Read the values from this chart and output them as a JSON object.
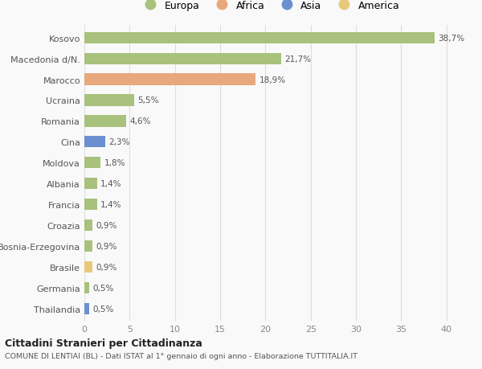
{
  "categories": [
    "Kosovo",
    "Macedonia d/N.",
    "Marocco",
    "Ucraina",
    "Romania",
    "Cina",
    "Moldova",
    "Albania",
    "Francia",
    "Croazia",
    "Bosnia-Erzegovina",
    "Brasile",
    "Germania",
    "Thailandia"
  ],
  "values": [
    38.7,
    21.7,
    18.9,
    5.5,
    4.6,
    2.3,
    1.8,
    1.4,
    1.4,
    0.9,
    0.9,
    0.9,
    0.5,
    0.5
  ],
  "labels": [
    "38,7%",
    "21,7%",
    "18,9%",
    "5,5%",
    "4,6%",
    "2,3%",
    "1,8%",
    "1,4%",
    "1,4%",
    "0,9%",
    "0,9%",
    "0,9%",
    "0,5%",
    "0,5%"
  ],
  "colors": [
    "#a8c17c",
    "#a8c17c",
    "#e8a87c",
    "#a8c17c",
    "#a8c17c",
    "#6b8fcf",
    "#a8c17c",
    "#a8c17c",
    "#a8c17c",
    "#a8c17c",
    "#a8c17c",
    "#e8c87c",
    "#a8c17c",
    "#6b8fcf"
  ],
  "continents": [
    "Europa",
    "Europa",
    "Africa",
    "Europa",
    "Europa",
    "Asia",
    "Europa",
    "Europa",
    "Europa",
    "Europa",
    "Europa",
    "America",
    "Europa",
    "Asia"
  ],
  "legend_labels": [
    "Europa",
    "Africa",
    "Asia",
    "America"
  ],
  "legend_colors": [
    "#a8c17c",
    "#e8a87c",
    "#6b8fcf",
    "#e8c87c"
  ],
  "title": "Cittadini Stranieri per Cittadinanza",
  "subtitle": "COMUNE DI LENTIAI (BL) - Dati ISTAT al 1° gennaio di ogni anno - Elaborazione TUTTITALIA.IT",
  "xlim": [
    0,
    41
  ],
  "xticks": [
    0,
    5,
    10,
    15,
    20,
    25,
    30,
    35,
    40
  ],
  "bg_color": "#f9f9f9",
  "bar_height": 0.55,
  "grid_color": "#dddddd"
}
